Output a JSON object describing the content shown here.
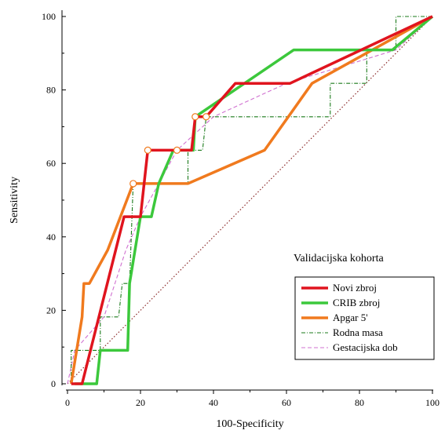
{
  "chart_data": {
    "type": "line",
    "xlabel": "100-Specificity",
    "ylabel": "Sensitivity",
    "xlim": [
      0,
      100
    ],
    "ylim": [
      0,
      100
    ],
    "x_ticks": [
      "0",
      "20",
      "40",
      "60",
      "80",
      "100"
    ],
    "y_ticks": [
      "0",
      "20",
      "40",
      "60",
      "80",
      "100"
    ],
    "grid": false,
    "annotation": "Validacijska kohorta",
    "legend_position": "bottom-right",
    "reference_line": {
      "from": [
        0,
        0
      ],
      "to": [
        100,
        100
      ],
      "style": "dotted",
      "color": "#8b2a2a"
    },
    "series": [
      {
        "name": "Novi zbroj",
        "color": "#e0141e",
        "style": "solid-thick",
        "points": [
          [
            1,
            0
          ],
          [
            4,
            0
          ],
          [
            15.5,
            45.5
          ],
          [
            20,
            45.5
          ],
          [
            22,
            63.6
          ],
          [
            30,
            63.6
          ],
          [
            34,
            63.6
          ],
          [
            35,
            72.7
          ],
          [
            38,
            72.7
          ],
          [
            46,
            81.8
          ],
          [
            61,
            81.8
          ],
          [
            100,
            100
          ]
        ],
        "markers": [
          [
            22,
            63.6
          ],
          [
            30,
            63.6
          ],
          [
            35,
            72.7
          ],
          [
            38,
            72.7
          ]
        ]
      },
      {
        "name": "CRIB zbroj",
        "color": "#3cc83c",
        "style": "solid-thick",
        "points": [
          [
            2,
            0
          ],
          [
            8,
            0
          ],
          [
            9,
            9.1
          ],
          [
            16.5,
            9.1
          ],
          [
            17,
            27.3
          ],
          [
            20,
            45.5
          ],
          [
            23,
            45.5
          ],
          [
            25,
            54.5
          ],
          [
            29,
            63.6
          ],
          [
            34.5,
            63.6
          ],
          [
            35,
            72.7
          ],
          [
            62,
            90.9
          ],
          [
            89,
            90.9
          ],
          [
            100,
            100
          ]
        ],
        "markers": []
      },
      {
        "name": "Apgar 5'",
        "color": "#f07a1e",
        "style": "solid-thick",
        "points": [
          [
            1,
            0
          ],
          [
            4,
            18.2
          ],
          [
            4.5,
            27.3
          ],
          [
            6,
            27.3
          ],
          [
            11,
            36.4
          ],
          [
            18,
            54.5
          ],
          [
            33,
            54.5
          ],
          [
            54,
            63.6
          ],
          [
            67,
            81.8
          ],
          [
            100,
            100
          ]
        ],
        "markers": [
          [
            18,
            54.5
          ]
        ]
      },
      {
        "name": "Rodna masa",
        "color": "#1a7a1a",
        "style": "dash-dot",
        "points": [
          [
            1,
            0
          ],
          [
            1,
            9.1
          ],
          [
            9,
            9.1
          ],
          [
            9,
            18.2
          ],
          [
            14,
            18.2
          ],
          [
            15,
            27.3
          ],
          [
            17,
            27.3
          ],
          [
            18,
            54.5
          ],
          [
            33,
            54.5
          ],
          [
            33,
            63.6
          ],
          [
            37,
            63.6
          ],
          [
            38,
            72.7
          ],
          [
            72,
            72.7
          ],
          [
            72,
            81.8
          ],
          [
            82,
            81.8
          ],
          [
            82,
            90.9
          ],
          [
            90,
            90.9
          ],
          [
            90,
            100
          ],
          [
            100,
            100
          ]
        ],
        "markers": []
      },
      {
        "name": "Gestacijska dob",
        "color": "#d070d0",
        "style": "dash",
        "points": [
          [
            0,
            0
          ],
          [
            2,
            9.1
          ],
          [
            10,
            18.2
          ],
          [
            16,
            36.4
          ],
          [
            20,
            45.5
          ],
          [
            25,
            54.5
          ],
          [
            30,
            63.6
          ],
          [
            40,
            72.7
          ],
          [
            60,
            81.8
          ],
          [
            90,
            90.9
          ],
          [
            100,
            100
          ]
        ],
        "markers": []
      }
    ]
  }
}
